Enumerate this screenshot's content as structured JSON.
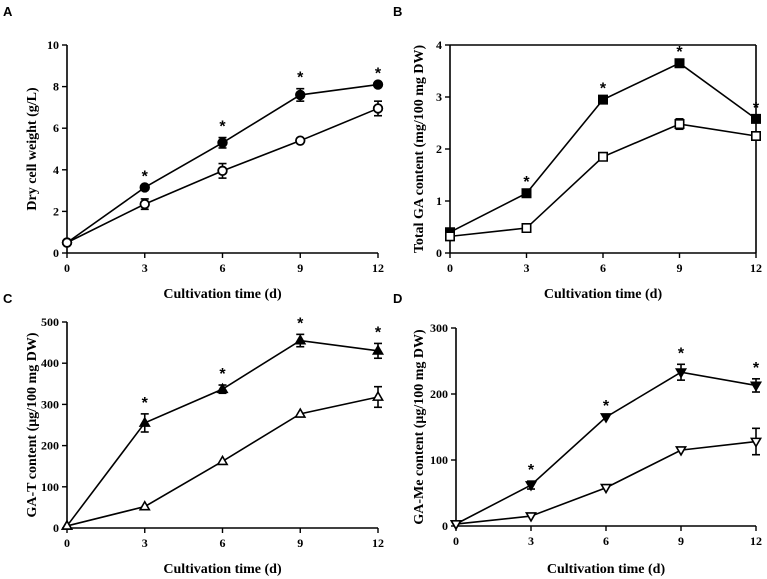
{
  "chart_data": [
    {
      "panel": "A",
      "type": "line",
      "xlabel": "Cultivation time (d)",
      "ylabel": "Dry cell weight (g/L)",
      "x": [
        0,
        3,
        6,
        9,
        12
      ],
      "xticks": [
        "0",
        "3",
        "6",
        "9",
        "12"
      ],
      "xlim": [
        0,
        12
      ],
      "ylim": [
        0,
        10
      ],
      "yticks": [
        "0",
        "2",
        "4",
        "6",
        "8",
        "10"
      ],
      "grid": false,
      "series": [
        {
          "marker": "filled-circle",
          "values": [
            0.5,
            3.15,
            5.3,
            7.6,
            8.1
          ],
          "errors": [
            0,
            0,
            0.25,
            0.3,
            0
          ]
        },
        {
          "marker": "open-circle",
          "values": [
            0.5,
            2.35,
            3.95,
            5.4,
            6.95
          ],
          "errors": [
            0,
            0.25,
            0.35,
            0,
            0.35
          ]
        }
      ],
      "annotations": [
        {
          "x": 3,
          "y": 3.15,
          "text": "*"
        },
        {
          "x": 6,
          "y": 5.55,
          "text": "*"
        },
        {
          "x": 9,
          "y": 7.9,
          "text": "*"
        },
        {
          "x": 12,
          "y": 8.1,
          "text": "*"
        }
      ]
    },
    {
      "panel": "B",
      "type": "line",
      "xlabel": "Cultivation time (d)",
      "ylabel": "Total GA content (mg/100 mg DW)",
      "x": [
        0,
        3,
        6,
        9,
        12
      ],
      "xticks": [
        "0",
        "3",
        "6",
        "9",
        "12"
      ],
      "xlim": [
        0,
        12
      ],
      "ylim": [
        0,
        4
      ],
      "yticks": [
        "0",
        "1",
        "2",
        "3",
        "4"
      ],
      "grid": false,
      "series": [
        {
          "marker": "filled-square",
          "values": [
            0.4,
            1.15,
            2.95,
            3.65,
            2.58
          ],
          "errors": [
            0,
            0,
            0,
            0,
            0
          ]
        },
        {
          "marker": "open-square",
          "values": [
            0.32,
            0.48,
            1.85,
            2.48,
            2.25
          ],
          "errors": [
            0,
            0,
            0,
            0.1,
            0
          ]
        }
      ],
      "annotations": [
        {
          "x": 3,
          "y": 1.15,
          "text": "*"
        },
        {
          "x": 6,
          "y": 2.95,
          "text": "*"
        },
        {
          "x": 9,
          "y": 3.65,
          "text": "*"
        },
        {
          "x": 12,
          "y": 2.58,
          "text": "*"
        }
      ]
    },
    {
      "panel": "C",
      "type": "line",
      "xlabel": "Cultivation time (d)",
      "ylabel": "GA-T content (μg/100 mg DW)",
      "x": [
        0,
        3,
        6,
        9,
        12
      ],
      "xticks": [
        "0",
        "3",
        "6",
        "9",
        "12"
      ],
      "xlim": [
        0,
        12
      ],
      "ylim": [
        0,
        500
      ],
      "yticks": [
        "0",
        "100",
        "200",
        "300",
        "400",
        "500"
      ],
      "grid": false,
      "series": [
        {
          "marker": "filled-triangle-up",
          "values": [
            5,
            255,
            337,
            455,
            430
          ],
          "errors": [
            0,
            22,
            10,
            15,
            18
          ]
        },
        {
          "marker": "open-triangle-up",
          "values": [
            5,
            52,
            162,
            277,
            318
          ],
          "errors": [
            0,
            0,
            0,
            0,
            25
          ]
        }
      ],
      "annotations": [
        {
          "x": 3,
          "y": 277,
          "text": "*"
        },
        {
          "x": 6,
          "y": 347,
          "text": "*"
        },
        {
          "x": 9,
          "y": 470,
          "text": "*"
        },
        {
          "x": 12,
          "y": 448,
          "text": "*"
        }
      ]
    },
    {
      "panel": "D",
      "type": "line",
      "xlabel": "Cultivation time (d)",
      "ylabel": "GA-Me content (μg/100 mg DW)",
      "x": [
        0,
        3,
        6,
        9,
        12
      ],
      "xticks": [
        "0",
        "3",
        "6",
        "9",
        "12"
      ],
      "xlim": [
        0,
        12
      ],
      "ylim": [
        0,
        300
      ],
      "yticks": [
        "0",
        "100",
        "200",
        "300"
      ],
      "grid": false,
      "series": [
        {
          "marker": "filled-triangle-down",
          "values": [
            3,
            62,
            165,
            233,
            213
          ],
          "errors": [
            0,
            6,
            0,
            12,
            10
          ]
        },
        {
          "marker": "open-triangle-down",
          "values": [
            3,
            15,
            58,
            115,
            128
          ],
          "errors": [
            0,
            0,
            0,
            0,
            20
          ]
        }
      ],
      "annotations": [
        {
          "x": 3,
          "y": 68,
          "text": "*"
        },
        {
          "x": 6,
          "y": 165,
          "text": "*"
        },
        {
          "x": 9,
          "y": 245,
          "text": "*"
        },
        {
          "x": 12,
          "y": 223,
          "text": "*"
        }
      ]
    }
  ]
}
